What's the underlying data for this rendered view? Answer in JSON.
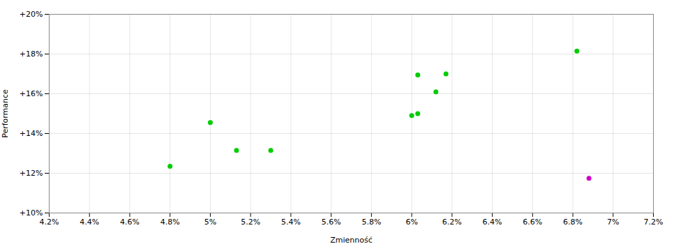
{
  "chart_data": {
    "type": "scatter",
    "xlabel": "Zmienność",
    "ylabel": "Performance",
    "xlim": [
      0.042,
      0.072
    ],
    "ylim": [
      0.1,
      0.2
    ],
    "xticks": [
      {
        "value": 0.042,
        "label": "4.2%"
      },
      {
        "value": 0.044,
        "label": "4.4%"
      },
      {
        "value": 0.046,
        "label": "4.6%"
      },
      {
        "value": 0.048,
        "label": "4.8%"
      },
      {
        "value": 0.05,
        "label": "5%"
      },
      {
        "value": 0.052,
        "label": "5.2%"
      },
      {
        "value": 0.054,
        "label": "5.4%"
      },
      {
        "value": 0.056,
        "label": "5.6%"
      },
      {
        "value": 0.058,
        "label": "5.8%"
      },
      {
        "value": 0.06,
        "label": "6%"
      },
      {
        "value": 0.062,
        "label": "6.2%"
      },
      {
        "value": 0.064,
        "label": "6.4%"
      },
      {
        "value": 0.066,
        "label": "6.6%"
      },
      {
        "value": 0.068,
        "label": "6.8%"
      },
      {
        "value": 0.07,
        "label": "7%"
      },
      {
        "value": 0.072,
        "label": "7.2%"
      }
    ],
    "yticks": [
      {
        "value": 0.1,
        "label": "+10%"
      },
      {
        "value": 0.12,
        "label": "+12%"
      },
      {
        "value": 0.14,
        "label": "+14%"
      },
      {
        "value": 0.16,
        "label": "+16%"
      },
      {
        "value": 0.18,
        "label": "+18%"
      },
      {
        "value": 0.2,
        "label": "+20%"
      }
    ],
    "grid": true,
    "series": [
      {
        "color": "#00cc00",
        "x": [
          0.048,
          0.05,
          0.0513,
          0.053,
          0.06,
          0.0603,
          0.0603,
          0.0617,
          0.0612,
          0.0682
        ],
        "values": [
          0.1235,
          0.1455,
          0.1315,
          0.1315,
          0.149,
          0.15,
          0.1695,
          0.17,
          0.161,
          0.1815
        ]
      },
      {
        "color": "#cc00cc",
        "x": [
          0.0688
        ],
        "values": [
          0.1175
        ]
      }
    ]
  }
}
